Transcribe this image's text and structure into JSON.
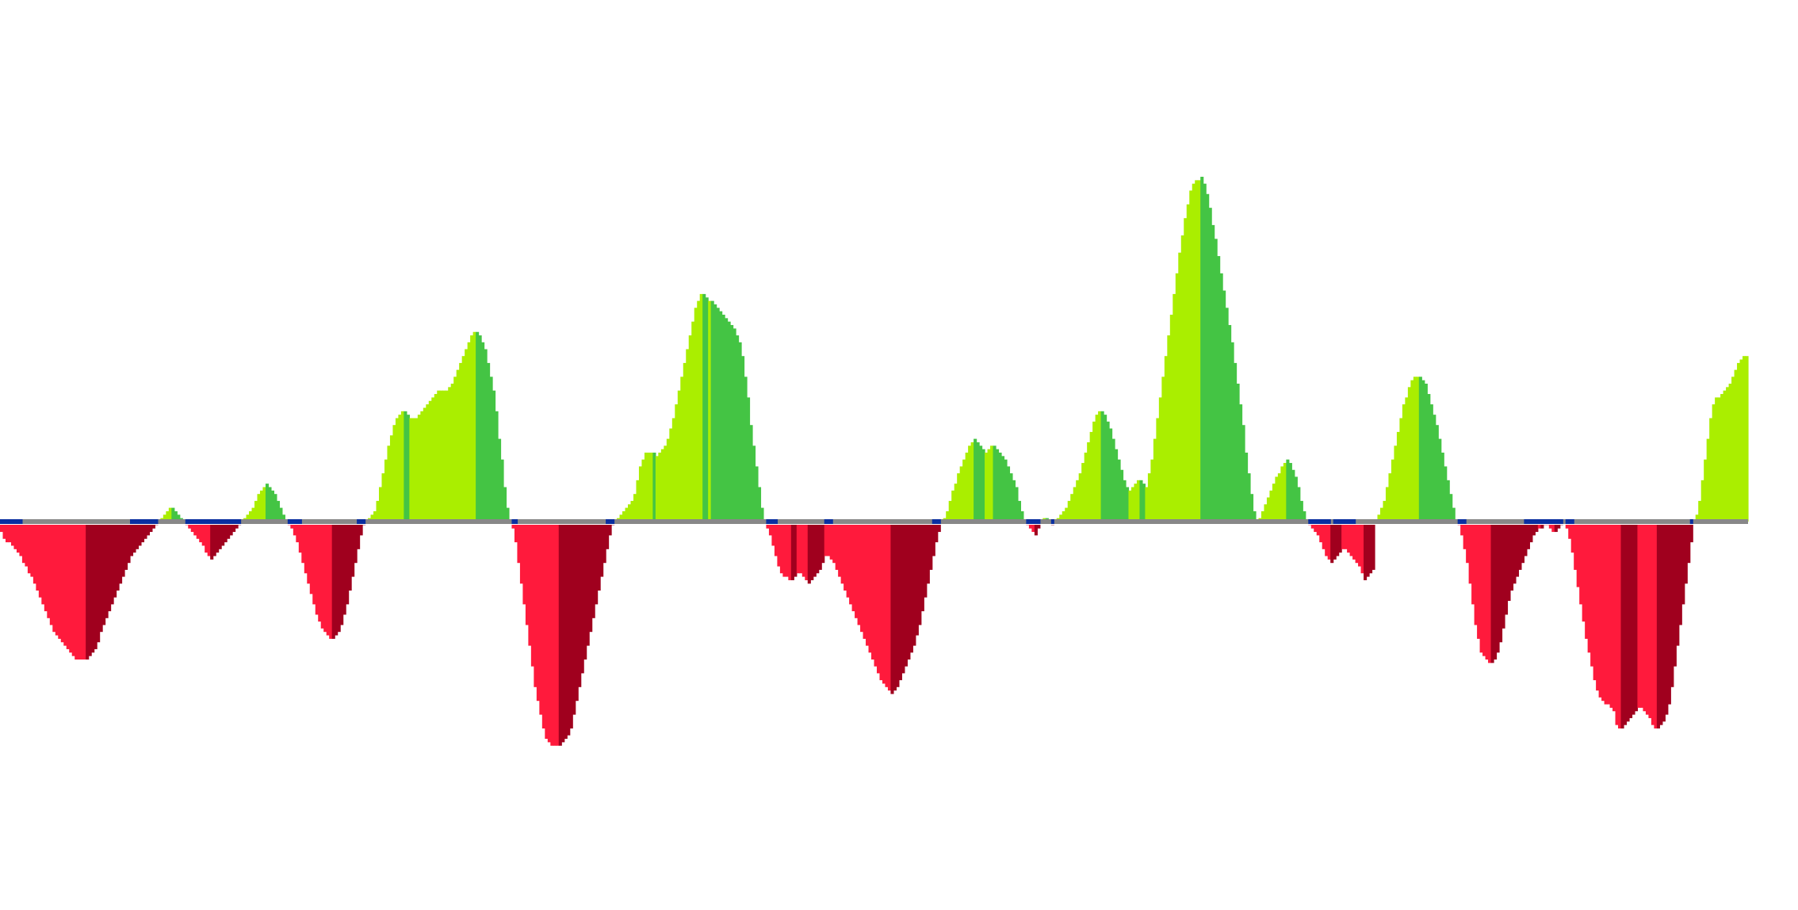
{
  "chart_data": {
    "type": "bar",
    "subtype": "histogram",
    "title": "",
    "xlabel": "",
    "ylabel": "",
    "grid": false,
    "legend": "none",
    "ylim": [
      -100,
      100
    ],
    "colors": {
      "positive_rising": "#aaee00",
      "positive_falling": "#44c444",
      "negative_falling": "#ff1a3c",
      "negative_rising": "#a0001e",
      "zero_line": "#888888",
      "zero_marker": "#0a2fa0"
    },
    "values": [
      -3,
      -5,
      -6,
      -6,
      -7,
      -8,
      -9,
      -10,
      -12,
      -13,
      -15,
      -16,
      -18,
      -20,
      -22,
      -24,
      -26,
      -28,
      -30,
      -32,
      -33,
      -34,
      -35,
      -36,
      -37,
      -38,
      -39,
      -40,
      -40,
      -40,
      -40,
      -40,
      -39,
      -38,
      -37,
      -35,
      -32,
      -30,
      -28,
      -26,
      -24,
      -22,
      -20,
      -18,
      -16,
      -14,
      -12,
      -10,
      -9,
      -8,
      -7,
      -6,
      -5,
      -4,
      -3,
      -2,
      -1,
      0,
      1,
      2,
      3,
      4,
      4,
      3,
      2,
      1,
      0,
      -1,
      -2,
      -3,
      -4,
      -5,
      -6,
      -7,
      -9,
      -10,
      -11,
      -10,
      -9,
      -8,
      -7,
      -6,
      -5,
      -4,
      -3,
      -2,
      -1,
      0,
      1,
      2,
      3,
      4,
      6,
      8,
      9,
      10,
      11,
      10,
      9,
      8,
      6,
      4,
      2,
      0,
      -1,
      -2,
      -4,
      -6,
      -9,
      -12,
      -15,
      -18,
      -21,
      -24,
      -27,
      -29,
      -31,
      -32,
      -33,
      -34,
      -34,
      -33,
      -32,
      -30,
      -27,
      -24,
      -20,
      -16,
      -12,
      -8,
      -4,
      -1,
      0,
      1,
      2,
      3,
      6,
      10,
      14,
      18,
      22,
      25,
      28,
      30,
      31,
      32,
      32,
      31,
      30,
      30,
      30,
      31,
      32,
      33,
      34,
      35,
      36,
      37,
      38,
      38,
      38,
      38,
      39,
      40,
      42,
      44,
      46,
      48,
      50,
      52,
      54,
      55,
      55,
      54,
      52,
      50,
      46,
      42,
      38,
      32,
      24,
      18,
      10,
      4,
      0,
      -2,
      -6,
      -12,
      -18,
      -24,
      -30,
      -36,
      -42,
      -48,
      -52,
      -56,
      -60,
      -63,
      -64,
      -65,
      -65,
      -65,
      -65,
      -64,
      -63,
      -62,
      -60,
      -56,
      -52,
      -48,
      -44,
      -40,
      -36,
      -32,
      -28,
      -24,
      -20,
      -16,
      -12,
      -8,
      -4,
      -1,
      0,
      1,
      2,
      3,
      4,
      5,
      6,
      8,
      12,
      16,
      18,
      20,
      20,
      20,
      20,
      19,
      20,
      21,
      22,
      24,
      27,
      30,
      34,
      38,
      42,
      46,
      50,
      54,
      58,
      62,
      64,
      66,
      66,
      65,
      64,
      64,
      63,
      62,
      61,
      60,
      59,
      58,
      57,
      56,
      54,
      52,
      48,
      42,
      36,
      28,
      22,
      16,
      10,
      4,
      0,
      -2,
      -4,
      -7,
      -10,
      -13,
      -15,
      -16,
      -16,
      -17,
      -17,
      -16,
      -15,
      -15,
      -16,
      -17,
      -18,
      -17,
      -16,
      -15,
      -14,
      -12,
      -10,
      -10,
      -11,
      -12,
      -14,
      -16,
      -18,
      -20,
      -22,
      -24,
      -26,
      -28,
      -30,
      -32,
      -34,
      -36,
      -38,
      -40,
      -42,
      -44,
      -46,
      -47,
      -48,
      -49,
      -50,
      -49,
      -48,
      -46,
      -44,
      -42,
      -40,
      -38,
      -36,
      -33,
      -30,
      -26,
      -22,
      -18,
      -14,
      -10,
      -6,
      -3,
      0,
      1,
      3,
      6,
      9,
      11,
      14,
      16,
      18,
      20,
      22,
      23,
      24,
      23,
      22,
      21,
      20,
      21,
      22,
      22,
      21,
      20,
      19,
      18,
      16,
      14,
      12,
      10,
      6,
      3,
      0,
      -1,
      -2,
      -3,
      -4,
      -2,
      0,
      1,
      1,
      0,
      -1,
      0,
      1,
      2,
      3,
      4,
      6,
      8,
      10,
      12,
      14,
      17,
      20,
      23,
      26,
      29,
      31,
      32,
      32,
      31,
      29,
      27,
      24,
      21,
      18,
      15,
      12,
      10,
      9,
      10,
      11,
      12,
      12,
      11,
      10,
      14,
      18,
      24,
      30,
      36,
      42,
      48,
      54,
      60,
      66,
      72,
      78,
      83,
      88,
      92,
      96,
      98,
      99,
      99,
      100,
      98,
      95,
      91,
      86,
      82,
      77,
      72,
      67,
      62,
      57,
      52,
      46,
      40,
      34,
      28,
      20,
      14,
      8,
      3,
      0,
      1,
      3,
      5,
      7,
      9,
      11,
      13,
      14,
      16,
      17,
      18,
      17,
      15,
      13,
      10,
      6,
      3,
      0,
      -1,
      -2,
      -3,
      -4,
      -6,
      -8,
      -10,
      -11,
      -12,
      -11,
      -10,
      -9,
      -8,
      -8,
      -9,
      -10,
      -11,
      -12,
      -13,
      -15,
      -17,
      -16,
      -15,
      -14,
      0,
      2,
      4,
      6,
      10,
      14,
      18,
      22,
      26,
      30,
      34,
      36,
      39,
      41,
      42,
      42,
      42,
      41,
      40,
      37,
      34,
      31,
      28,
      24,
      20,
      16,
      12,
      8,
      4,
      0,
      -1,
      -4,
      -8,
      -12,
      -18,
      -24,
      -30,
      -34,
      -38,
      -39,
      -40,
      -41,
      -41,
      -40,
      -38,
      -35,
      -31,
      -27,
      -23,
      -20,
      -18,
      -16,
      -14,
      -12,
      -10,
      -8,
      -6,
      -4,
      -3,
      -2,
      -2,
      -1,
      -1,
      -2,
      -3,
      -3,
      -2,
      -1,
      0,
      -2,
      -5,
      -9,
      -14,
      -19,
      -24,
      -29,
      -34,
      -38,
      -42,
      -46,
      -49,
      -51,
      -52,
      -53,
      -53,
      -54,
      -55,
      -59,
      -60,
      -60,
      -59,
      -58,
      -57,
      -56,
      -55,
      -54,
      -54,
      -55,
      -56,
      -57,
      -59,
      -60,
      -60,
      -59,
      -58,
      -56,
      -53,
      -48,
      -42,
      -36,
      -30,
      -24,
      -18,
      -12,
      -6,
      0,
      2,
      6,
      12,
      18,
      24,
      30,
      34,
      36,
      36,
      37,
      38,
      39,
      40,
      42,
      44,
      46,
      47,
      48,
      48
    ]
  }
}
